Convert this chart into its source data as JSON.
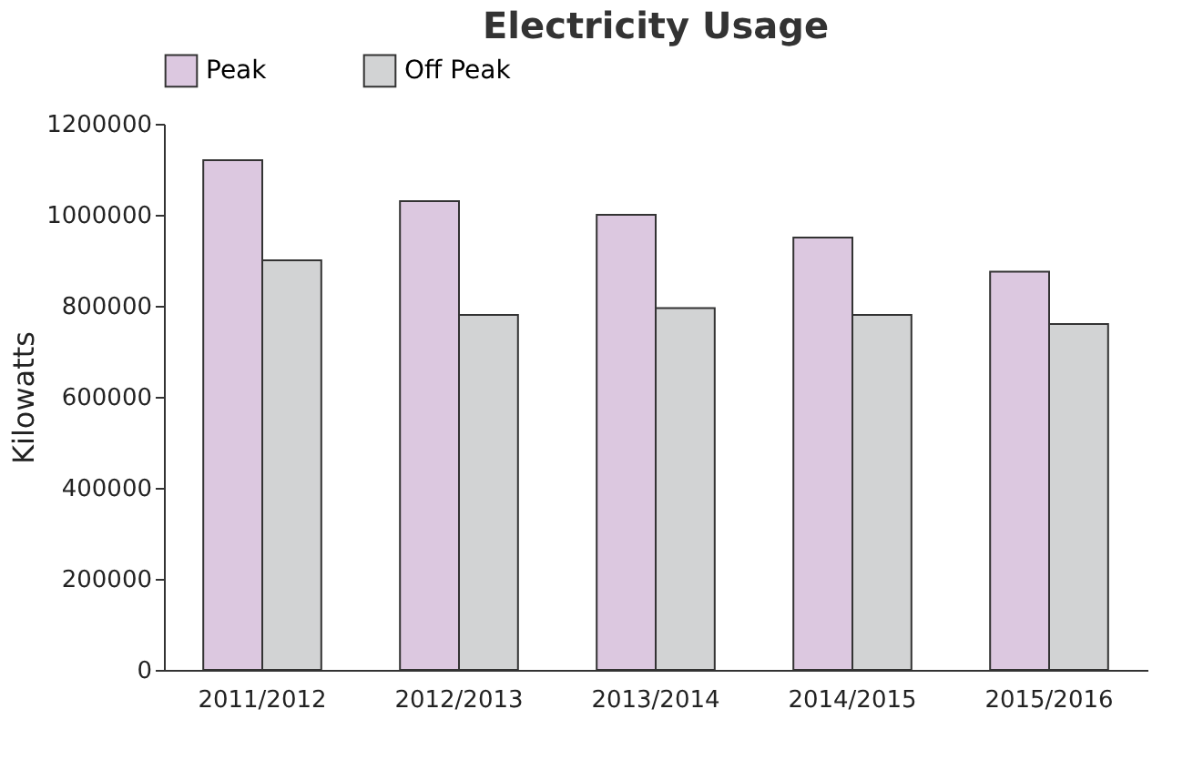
{
  "chart_data": {
    "type": "bar",
    "title": "Electricity Usage",
    "ylabel": "Kilowatts",
    "categories": [
      "2011/2012",
      "2012/2013",
      "2013/2014",
      "2014/2015",
      "2015/2016"
    ],
    "series": [
      {
        "name": "Peak",
        "color": "#dcc8e0",
        "values": [
          1120000,
          1030000,
          1000000,
          950000,
          875000
        ]
      },
      {
        "name": "Off Peak",
        "color": "#d2d3d4",
        "values": [
          900000,
          780000,
          795000,
          780000,
          760000
        ]
      }
    ],
    "ylim": [
      0,
      1200000
    ],
    "yticks": [
      0,
      200000,
      400000,
      600000,
      800000,
      1000000,
      1200000
    ],
    "grid": false,
    "legend": "top"
  }
}
